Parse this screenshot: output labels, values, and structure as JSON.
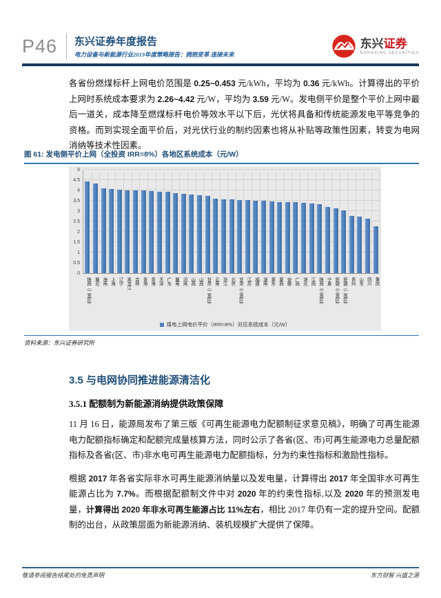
{
  "header": {
    "page_number": "P46",
    "title": "东兴证券年度报告",
    "subtitle": "电力设备与新能源行业2019年度策略报告：拥抱变革 连接未来",
    "logo": {
      "cn_black": "东兴",
      "cn_red": "证券",
      "en": "DONGXING SECURITIES"
    }
  },
  "intro": {
    "runs": [
      {
        "t": "各省份燃煤标杆上网电价范围是 "
      },
      {
        "t": "0.25~0.453",
        "b": true
      },
      {
        "t": " 元/kWh，平均为 "
      },
      {
        "t": "0.36",
        "b": true
      },
      {
        "t": " 元/kWh。计算得出的平价上网时系统成本要求为 "
      },
      {
        "t": "2.26~4.42",
        "b": true
      },
      {
        "t": " 元/W，平均为 "
      },
      {
        "t": "3.59",
        "b": true
      },
      {
        "t": " 元/W。发电侧平价是整个平价上网中最后一道关，成本降至燃煤标杆电价等效水平以下后，光伏将具备和传统能源发电平等竞争的资格。而到实现全面平价后，对光伏行业的制约因素也将从补贴等政策性因素，转变为电网消纳等技术性因素。"
      }
    ]
  },
  "figure": {
    "title": "图 61: 发电侧平价上网（全投资 IRR=8%）各地区系统成本（元/W）",
    "legend": "煤电上网电价平价（IRR=8%）对应系统成本（元/W）",
    "source": "资料来源：东兴证券研究所"
  },
  "chart_data": {
    "type": "bar",
    "title": "发电侧平价上网（全投资 IRR=8%）各地区系统成本（元/W）",
    "categories": [
      "陕西（二类区）",
      "冀北",
      "海南",
      "上海",
      "辽宁",
      "黑龙江",
      "吉林",
      "青海",
      "青海",
      "天津",
      "广东",
      "冀南",
      "河南",
      "山西",
      "山西",
      "甘肃（二类区）",
      "云南",
      "浙江",
      "北京",
      "甘肃（三类区）",
      "江苏",
      "福建",
      "湖南",
      "蒙东",
      "蒙西",
      "安徽",
      "广西",
      "湖北",
      "江西",
      "陕西（三类区）",
      "宁夏",
      "新疆（三类区）",
      "新疆（二类区）",
      "贵州",
      "山东",
      "四川",
      "重庆"
    ],
    "values": [
      4.42,
      4.35,
      4.1,
      4.08,
      4.02,
      4.01,
      4.01,
      4.0,
      3.98,
      3.95,
      3.95,
      3.86,
      3.83,
      3.8,
      3.78,
      3.73,
      3.6,
      3.58,
      3.58,
      3.55,
      3.52,
      3.5,
      3.5,
      3.46,
      3.44,
      3.44,
      3.43,
      3.41,
      3.38,
      3.32,
      3.19,
      3.13,
      3.02,
      2.76,
      2.74,
      2.63,
      2.26
    ],
    "ylabel": "",
    "xlabel": "",
    "ylim": [
      0,
      5
    ],
    "ytick_step": 0.5,
    "grid": true,
    "legend_entries": [
      "煤电上网电价平价（IRR=8%）对应系统成本（元/W）"
    ],
    "legend_position": "bottom",
    "bar_color": "#4F81BD",
    "plot_bg": "#E9E9E9"
  },
  "sections": {
    "s35": {
      "title": "3.5 与电网协同推进能源清洁化"
    },
    "s351": {
      "title": "3.5.1 配额制为新能源消纳提供政策保障",
      "p1": [
        {
          "t": "11 月 16 日，能源局发布了第三版《可再生能源电力配额制征求意见稿》，明确了可再生能源电力配额指标确定和配额完成量核算方法，同时公示了各省(区、市)可再生能源电力总量配额指标及各省(区、市)非水电可再生能源电力配额指标，分为约束性指标和激励性指标。"
        }
      ],
      "p2": [
        {
          "t": "根据 "
        },
        {
          "t": "2017",
          "b": true
        },
        {
          "t": " 年各省实际非水可再生能源消纳量以及发电量，计算得出 "
        },
        {
          "t": "2017",
          "b": true
        },
        {
          "t": " 年全国非水可再生能源占比为 "
        },
        {
          "t": "7.7%",
          "b": true
        },
        {
          "t": "。而根据配额制文件中对 "
        },
        {
          "t": "2020",
          "b": true
        },
        {
          "t": " 年的约束性指标,以及 "
        },
        {
          "t": "2020",
          "b": true
        },
        {
          "t": " 年的预测发电量，"
        },
        {
          "t": "计算得出 2020 年非水可再生能源占比 11%左右",
          "b": true
        },
        {
          "t": "，相比 2017 年仍有一定的提升空间。配额制的出台，从政策层面为新能源消纳、装机规模扩大提供了保障。"
        }
      ]
    }
  },
  "footer": {
    "left": "敬请参阅报告结尾处的免责声明",
    "right": "东方财智 兴盛之源"
  },
  "colors": {
    "accent_navy": "#17375E",
    "title_blue": "#1F4E79",
    "rule_blue": "#2E74B5",
    "bar_blue": "#4F81BD",
    "logo_red": "#C8161E",
    "chart_bg": "#E9E9E9"
  }
}
